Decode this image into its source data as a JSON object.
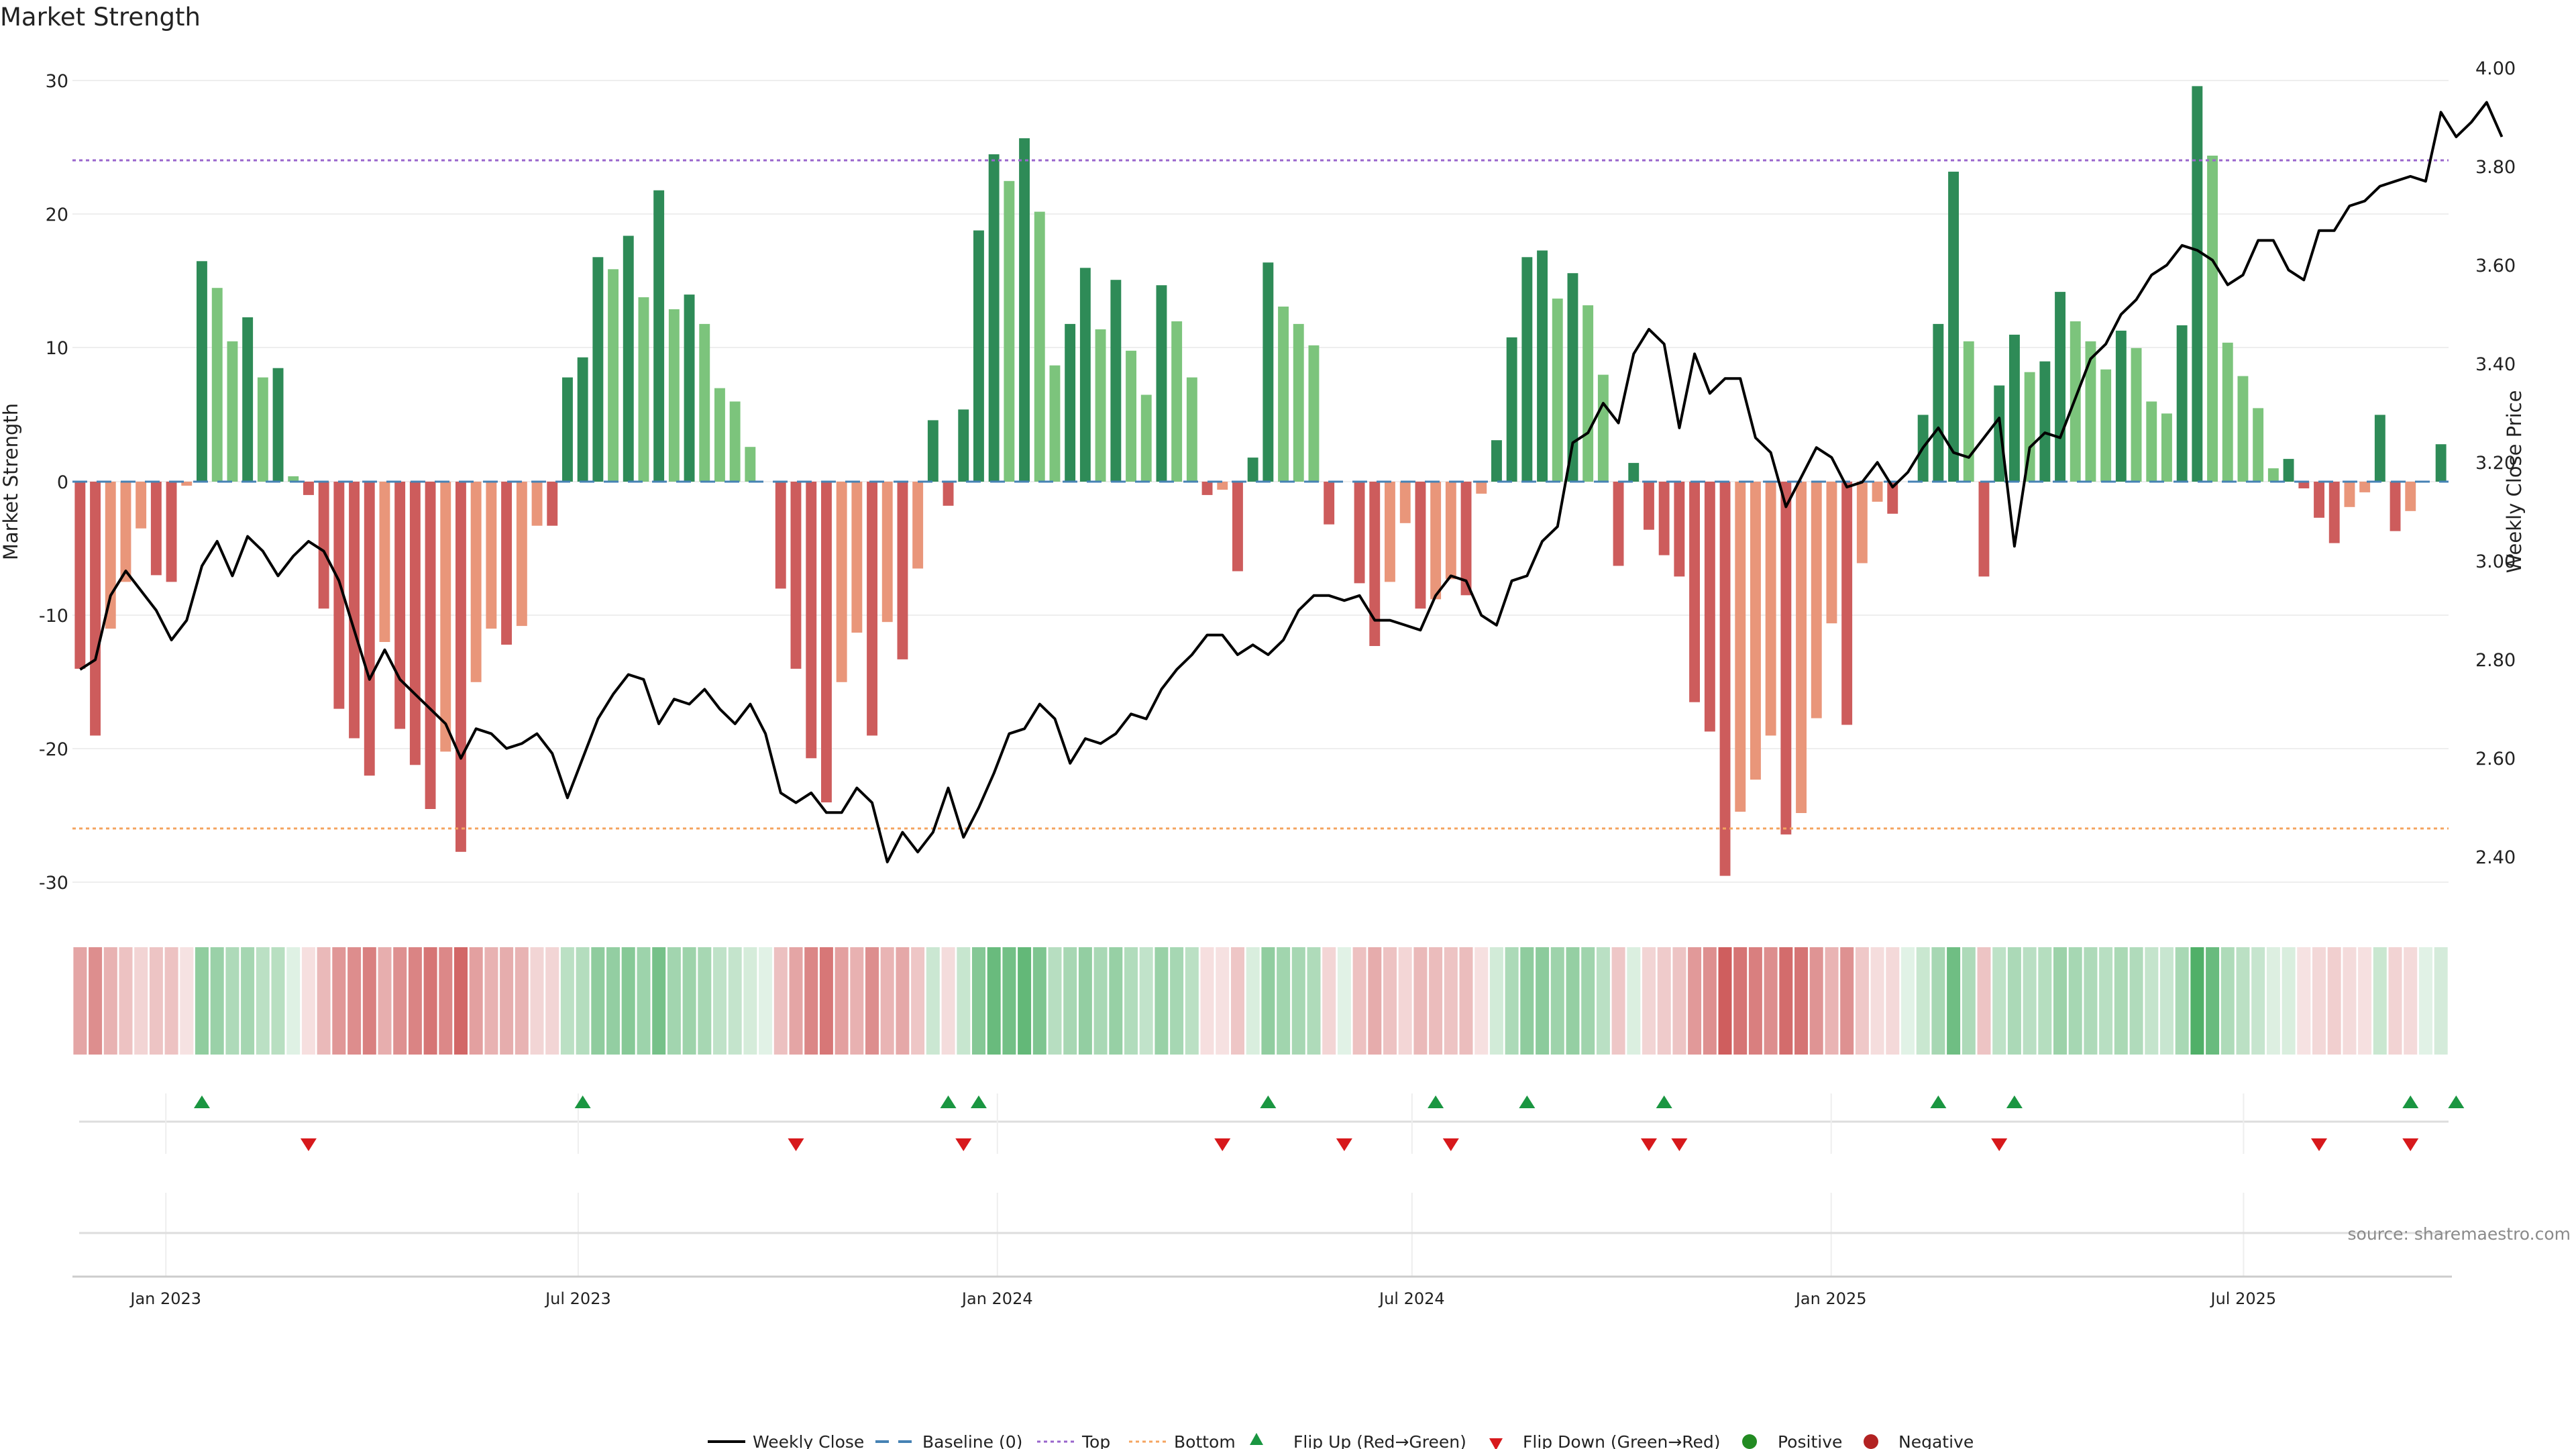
{
  "colors": {
    "pos_strong": "#2e8b57",
    "pos_light": "#7cc47c",
    "neg_strong": "#cd5c5c",
    "neg_light": "#e9967a",
    "weekly_close": "#000000",
    "baseline": "#4682b4",
    "top": "#9966cc",
    "bottom": "#f4a460",
    "flip_up": "#1a9641",
    "flip_down": "#d7191c",
    "positive": "#228b22",
    "negative": "#b22222",
    "grid": "#eeeeee",
    "source": "#8a8a8a"
  },
  "chart_data": {
    "type": "bar",
    "title": "Market Strength",
    "ylabel": "Market Strength",
    "y2label": "Weekly Close Price",
    "ylim": [
      -32,
      32
    ],
    "y2lim": [
      2.33,
      4.06
    ],
    "yticks": [
      -30,
      -20,
      -10,
      0,
      10,
      20,
      30
    ],
    "y2ticks": [
      "2.40",
      "2.60",
      "2.80",
      "3.00",
      "3.20",
      "3.40",
      "3.60",
      "3.80",
      "4.00"
    ],
    "top_level": 24,
    "bottom_level": -26,
    "x_start": "2022-11-21",
    "x_end": "2025-09-29",
    "date_ticks": [
      {
        "label": "Jan 2023",
        "date": "2023-01-01"
      },
      {
        "label": "Jul 2023",
        "date": "2023-07-01"
      },
      {
        "label": "Jan 2024",
        "date": "2024-01-01"
      },
      {
        "label": "Jul 2024",
        "date": "2024-07-01"
      },
      {
        "label": "Jan 2025",
        "date": "2025-01-01"
      },
      {
        "label": "Jul 2025",
        "date": "2025-07-01"
      }
    ],
    "series": [
      {
        "name": "Market Strength",
        "values": [
          -14,
          -19,
          -11,
          -7.5,
          -3.5,
          -7,
          -7.5,
          -0.3,
          16.5,
          14.5,
          10.5,
          12.3,
          7.8,
          8.5,
          0.4,
          -1,
          -9.5,
          -17,
          -19.2,
          -22,
          -12,
          -18.5,
          -21.2,
          -24.5,
          -20.2,
          -27.7,
          -15,
          -11,
          -12.2,
          -10.8,
          -3.3,
          -3.3,
          7.8,
          9.3,
          16.8,
          15.9,
          18.4,
          13.8,
          21.8,
          12.9,
          14,
          11.8,
          7,
          6,
          2.6,
          0,
          -8,
          -14,
          -20.7,
          -24,
          -15,
          -11.3,
          -19,
          -10.5,
          -13.3,
          -6.5,
          4.6,
          -1.8,
          5.4,
          18.8,
          24.5,
          22.5,
          25.7,
          20.2,
          8.7,
          11.8,
          16,
          11.4,
          15.1,
          9.8,
          6.5,
          14.7,
          12,
          7.8,
          -1,
          -0.6,
          -6.7,
          1.8,
          16.4,
          13.1,
          11.8,
          10.2,
          -3.2,
          0,
          -7.6,
          -12.3,
          -7.5,
          -3.1,
          -9.5,
          -8.8,
          -7.3,
          -8.5,
          -0.9,
          3.1,
          10.8,
          16.8,
          17.3,
          13.7,
          15.6,
          13.2,
          8,
          -6.3,
          1.4,
          -3.6,
          -5.5,
          -7.1,
          -16.5,
          -18.7,
          -29.5,
          -24.7,
          -22.3,
          -19,
          -26.4,
          -24.8,
          -17.7,
          -10.6,
          -18.2,
          -6.1,
          -1.5,
          -2.4,
          0,
          5,
          11.8,
          23.2,
          10.5,
          -7.1,
          7.2,
          11,
          8.2,
          9,
          14.2,
          12,
          10.5,
          8.4,
          11.3,
          10,
          6,
          5.1,
          11.7,
          29.6,
          24.4,
          10.4,
          7.9,
          5.5,
          1,
          1.7,
          -0.5,
          -2.7,
          -4.6,
          -1.9,
          -0.8,
          5,
          -3.7,
          -2.2,
          0,
          2.8
        ]
      },
      {
        "name": "Weekly Close",
        "values": [
          2.78,
          2.8,
          2.93,
          2.98,
          2.94,
          2.9,
          2.84,
          2.88,
          2.99,
          3.04,
          2.97,
          3.05,
          3.02,
          2.97,
          3.01,
          3.04,
          3.02,
          2.96,
          2.86,
          2.76,
          2.82,
          2.76,
          2.73,
          2.7,
          2.67,
          2.6,
          2.66,
          2.65,
          2.62,
          2.63,
          2.65,
          2.61,
          2.52,
          2.6,
          2.68,
          2.73,
          2.77,
          2.76,
          2.67,
          2.72,
          2.71,
          2.74,
          2.7,
          2.67,
          2.71,
          2.65,
          2.53,
          2.51,
          2.53,
          2.49,
          2.49,
          2.54,
          2.51,
          2.39,
          2.45,
          2.41,
          2.45,
          2.54,
          2.44,
          2.5,
          2.57,
          2.65,
          2.66,
          2.71,
          2.68,
          2.59,
          2.64,
          2.63,
          2.65,
          2.69,
          2.68,
          2.74,
          2.78,
          2.81,
          2.85,
          2.85,
          2.81,
          2.83,
          2.81,
          2.84,
          2.9,
          2.93,
          2.93,
          2.92,
          2.93,
          2.88,
          2.88,
          2.87,
          2.86,
          2.93,
          2.97,
          2.96,
          2.89,
          2.87,
          2.96,
          2.97,
          3.04,
          3.07,
          3.24,
          3.26,
          3.32,
          3.28,
          3.42,
          3.47,
          3.44,
          3.27,
          3.42,
          3.34,
          3.37,
          3.37,
          3.25,
          3.22,
          3.11,
          3.17,
          3.23,
          3.21,
          3.15,
          3.16,
          3.2,
          3.15,
          3.18,
          3.23,
          3.27,
          3.22,
          3.21,
          3.25,
          3.29,
          3.03,
          3.23,
          3.26,
          3.25,
          3.33,
          3.41,
          3.44,
          3.5,
          3.53,
          3.58,
          3.6,
          3.64,
          3.63,
          3.61,
          3.56,
          3.58,
          3.65,
          3.65,
          3.59,
          3.57,
          3.67,
          3.67,
          3.72,
          3.73,
          3.76,
          3.77,
          3.78,
          3.77,
          3.91,
          3.86,
          3.89,
          3.93,
          3.86
        ]
      }
    ],
    "sentiment_strip": "one colored cell per week; hue = sign, intensity = magnitude",
    "flip_up_weeks": [
      8,
      33,
      57,
      59,
      78,
      89,
      95,
      104,
      122,
      127,
      153,
      156
    ],
    "flip_down_weeks": [
      15,
      47,
      58,
      75,
      83,
      90,
      103,
      105,
      126,
      147,
      153
    ],
    "legend": [
      "Weekly Close",
      "Baseline (0)",
      "Top",
      "Bottom",
      "Flip Up (Red→Green)",
      "Flip Down (Green→Red)",
      "Positive",
      "Negative"
    ],
    "legend_position": "bottom-center"
  },
  "source_label": "source: sharemaestro.com"
}
